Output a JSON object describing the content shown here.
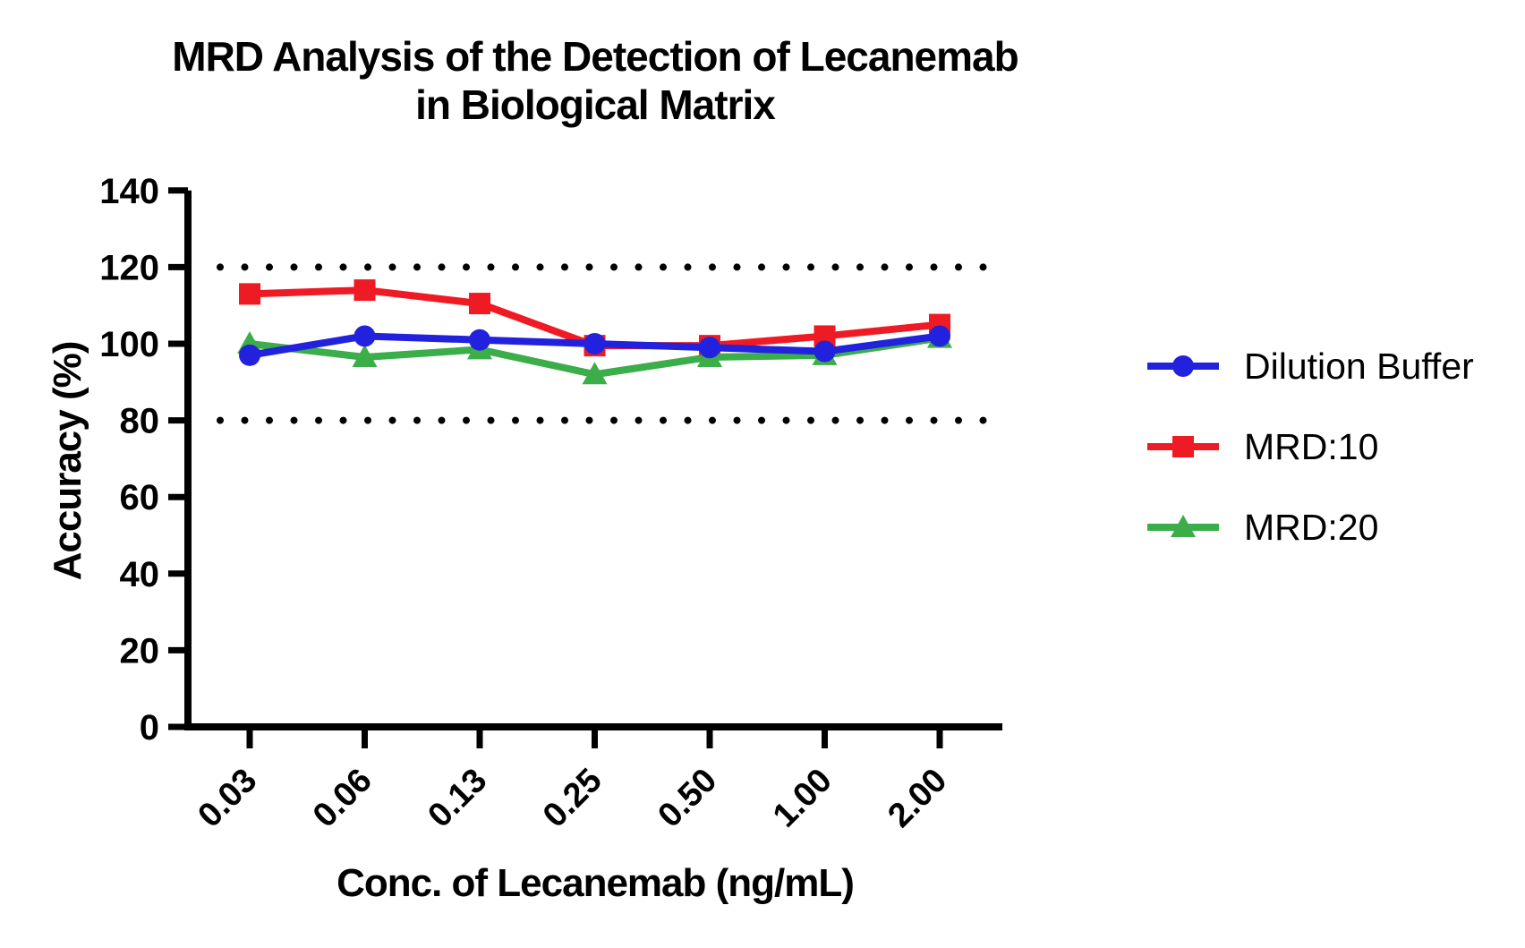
{
  "chart_data": {
    "type": "line",
    "title_line1": "MRD Analysis of the Detection of Lecanemab",
    "title_line2": "in Biological Matrix",
    "xlabel": "Conc. of Lecanemab (ng/mL)",
    "ylabel": "Accuracy (%)",
    "categories": [
      "0.03",
      "0.06",
      "0.13",
      "0.25",
      "0.50",
      "1.00",
      "2.00"
    ],
    "y_ticks": [
      0,
      20,
      40,
      60,
      80,
      100,
      120,
      140
    ],
    "ylim": [
      0,
      140
    ],
    "grid": false,
    "reference_lines": [
      {
        "y": 120,
        "style": "dotted",
        "color": "#000000"
      },
      {
        "y": 80,
        "style": "dotted",
        "color": "#000000"
      }
    ],
    "series": [
      {
        "name": "MRD:10",
        "marker": "square",
        "color": "#EE1B24",
        "values": [
          113,
          114,
          110.5,
          99.5,
          99.5,
          102,
          105
        ]
      },
      {
        "name": "MRD:20",
        "marker": "triangle",
        "color": "#3BAD49",
        "values": [
          100,
          96.5,
          98.5,
          92,
          96.5,
          97,
          101.5
        ]
      },
      {
        "name": "Dilution Buffer",
        "marker": "circle",
        "color": "#2121DE",
        "values": [
          97,
          102,
          101,
          100,
          99,
          98,
          102
        ]
      }
    ],
    "legend": [
      {
        "name": "Dilution Buffer",
        "marker": "circle",
        "color": "#2121DE"
      },
      {
        "name": "MRD:10",
        "marker": "square",
        "color": "#EE1B24"
      },
      {
        "name": "MRD:20",
        "marker": "triangle",
        "color": "#3BAD49"
      }
    ],
    "legend_position": "right",
    "axis_color": "#000000"
  }
}
